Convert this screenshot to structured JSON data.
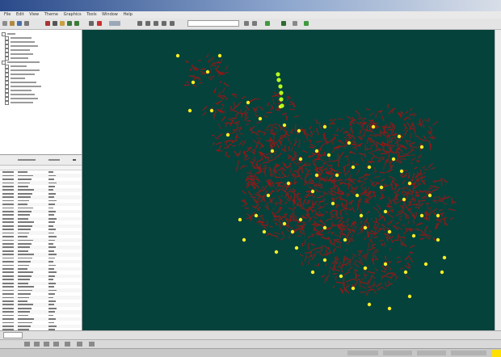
{
  "app": {
    "title": "",
    "menu": [
      "File",
      "Edit",
      "View",
      "Theme",
      "Graphics",
      "Tools",
      "Window",
      "Help"
    ]
  },
  "toolbar": {
    "icons": [
      "new-icon",
      "open-icon",
      "save-icon",
      "print-icon",
      "cut-icon",
      "copy-icon",
      "paste-icon",
      "undo-icon",
      "redo-icon",
      "zoom-in-icon",
      "zoom-out-icon",
      "pan-icon",
      "identify-icon",
      "select-icon",
      "measure-icon",
      "refresh-icon"
    ]
  },
  "layers": {
    "item_count": 18
  },
  "attribute_table": {
    "row_count": 47
  },
  "map": {
    "background_color": "#05423c",
    "network_color": "#9b1616",
    "stop_color": "#ffee22",
    "highlight_color": "#b6ff1a"
  },
  "status": {
    "indicator_color": "#ffe000"
  }
}
